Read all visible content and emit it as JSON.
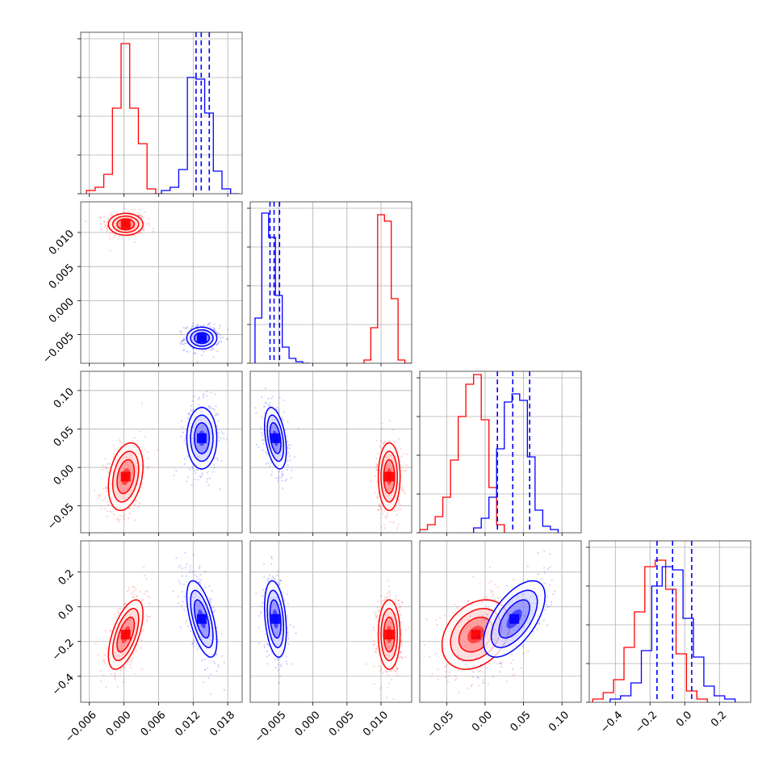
{
  "figure": {
    "type": "corner-plot"
  },
  "colors": {
    "red": "#ff0000",
    "blue": "#0000ff",
    "grid": "#b0b0b0",
    "frame": "#333333"
  },
  "chart_data": {
    "type": "corner",
    "n_params": 4,
    "grid": true,
    "params": [
      {
        "range": [
          -0.0075,
          0.0205
        ],
        "ticks": [
          -0.006,
          0.0,
          0.006,
          0.012,
          0.018
        ],
        "tick_labels": [
          "−0.006",
          "0.000",
          "0.006",
          "0.012",
          "0.018"
        ]
      },
      {
        "range": [
          -0.0092,
          0.0145
        ],
        "ticks": [
          -0.005,
          0.0,
          0.005,
          0.01
        ],
        "tick_labels": [
          "−0.005",
          "0.000",
          "0.005",
          "0.010"
        ]
      },
      {
        "range": [
          -0.085,
          0.125
        ],
        "ticks": [
          -0.05,
          0.0,
          0.05,
          0.1
        ],
        "tick_labels": [
          "−0.05",
          "0.00",
          "0.05",
          "0.10"
        ]
      },
      {
        "range": [
          -0.55,
          0.38
        ],
        "ticks": [
          -0.4,
          -0.2,
          0.0,
          0.2
        ],
        "tick_labels": [
          "−0.4",
          "−0.2",
          "0.0",
          "0.2"
        ]
      }
    ],
    "series": [
      {
        "color": "red",
        "mean": [
          0.0003,
          0.0112,
          -0.012,
          -0.16
        ],
        "std": [
          0.0015,
          0.0008,
          0.022,
          0.1
        ],
        "corr": [
          [
            1,
            0,
            0.3,
            0.6
          ],
          [
            0,
            1,
            0,
            0
          ],
          [
            0.3,
            0,
            1,
            0.3
          ],
          [
            0.6,
            0,
            0.3,
            1
          ]
        ],
        "hist": [
          {
            "edges": [
              -0.0065,
              -0.005,
              -0.0035,
              -0.002,
              -0.0005,
              0.001,
              0.0025,
              0.004,
              0.0055,
              0.007
            ],
            "counts": [
              0.02,
              0.04,
              0.12,
              0.53,
              0.93,
              0.53,
              0.31,
              0.03,
              0.0
            ]
          },
          {
            "edges": [
              0.0075,
              0.0085,
              0.0095,
              0.0105,
              0.0115,
              0.0125,
              0.0135,
              0.0145
            ],
            "counts": [
              0.02,
              0.22,
              0.92,
              0.88,
              0.4,
              0.02,
              0.0
            ]
          },
          {
            "edges": [
              -0.085,
              -0.075,
              -0.065,
              -0.055,
              -0.045,
              -0.035,
              -0.025,
              -0.015,
              -0.005,
              0.005,
              0.015,
              0.025
            ],
            "counts": [
              0.02,
              0.05,
              0.1,
              0.22,
              0.45,
              0.72,
              0.92,
              0.98,
              0.7,
              0.28,
              0.05
            ]
          },
          {
            "edges": [
              -0.53,
              -0.47,
              -0.41,
              -0.35,
              -0.29,
              -0.23,
              -0.17,
              -0.11,
              -0.05,
              0.01,
              0.07,
              0.13
            ],
            "counts": [
              0.02,
              0.06,
              0.14,
              0.34,
              0.56,
              0.84,
              0.88,
              0.7,
              0.3,
              0.07,
              0.02
            ]
          }
        ]
      },
      {
        "color": "blue",
        "mean": [
          0.0135,
          -0.0055,
          0.038,
          -0.07
        ],
        "std": [
          0.0013,
          0.0008,
          0.02,
          0.11
        ],
        "corr": [
          [
            1,
            0,
            0,
            -0.6
          ],
          [
            0,
            1,
            -0.4,
            -0.3
          ],
          [
            0,
            -0.4,
            1,
            0.6
          ],
          [
            -0.6,
            -0.3,
            0.6,
            1
          ]
        ],
        "hist": [
          {
            "edges": [
              0.0065,
              0.008,
              0.0095,
              0.011,
              0.0125,
              0.014,
              0.0155,
              0.017,
              0.0185,
              0.02
            ],
            "counts": [
              0.02,
              0.04,
              0.15,
              0.72,
              0.71,
              0.5,
              0.14,
              0.03,
              0.0
            ]
          },
          {
            "edges": [
              -0.0085,
              -0.0075,
              -0.0065,
              -0.0055,
              -0.0045,
              -0.0035,
              -0.0025,
              -0.0015,
              -0.0005
            ],
            "counts": [
              0.28,
              0.93,
              0.78,
              0.42,
              0.1,
              0.03,
              0.01,
              0.0
            ]
          },
          {
            "edges": [
              -0.015,
              -0.005,
              0.005,
              0.015,
              0.025,
              0.035,
              0.045,
              0.055,
              0.065,
              0.075,
              0.085,
              0.095
            ],
            "counts": [
              0.03,
              0.09,
              0.22,
              0.52,
              0.81,
              0.86,
              0.82,
              0.47,
              0.14,
              0.04,
              0.02
            ]
          },
          {
            "edges": [
              -0.43,
              -0.37,
              -0.31,
              -0.25,
              -0.19,
              -0.13,
              -0.07,
              -0.01,
              0.05,
              0.11,
              0.17,
              0.23,
              0.29
            ],
            "counts": [
              0.02,
              0.04,
              0.12,
              0.32,
              0.72,
              0.84,
              0.82,
              0.52,
              0.28,
              0.1,
              0.04,
              0.02
            ]
          }
        ]
      }
    ],
    "quantile_series": "blue",
    "quantiles": [
      [
        0.0125,
        0.0134,
        0.0148
      ],
      [
        -0.0063,
        -0.0057,
        -0.0049
      ],
      [
        0.016,
        0.036,
        0.058
      ],
      [
        -0.16,
        -0.07,
        0.04
      ]
    ],
    "contour_levels_sigma": [
      0.5,
      1.0,
      1.5,
      2.0
    ],
    "scatter_points_per_panel": 420
  }
}
